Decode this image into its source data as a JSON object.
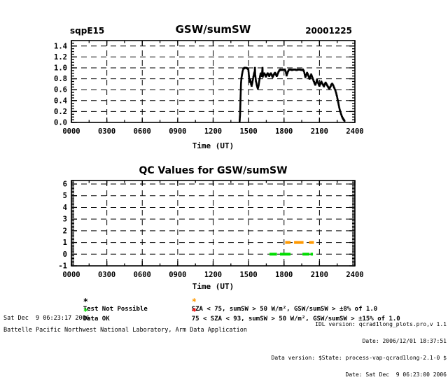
{
  "page": {
    "background": "#ffffff",
    "foreground": "#000000"
  },
  "chart_data": [
    {
      "id": "gsw-sumsw",
      "type": "scatter",
      "site_label": "sqpE15",
      "title": "GSW/sumSW",
      "date_label": "20001225",
      "xlabel": "Time (UT)",
      "xlim": [
        0,
        2400
      ],
      "ylim": [
        0,
        1.5
      ],
      "xticks": [
        "0000",
        "0300",
        "0600",
        "0900",
        "1200",
        "1500",
        "1800",
        "2100",
        "2400"
      ],
      "xtick_values": [
        0,
        300,
        600,
        900,
        1200,
        1500,
        1800,
        2100,
        2400
      ],
      "x_minor_step": 150,
      "yticks": [
        "0.0",
        "0.2",
        "0.4",
        "0.6",
        "0.8",
        "1.0",
        "1.2",
        "1.4"
      ],
      "ytick_values": [
        0,
        0.2,
        0.4,
        0.6,
        0.8,
        1.0,
        1.2,
        1.4
      ],
      "y_minor_step": 0.05,
      "grid": "dashed",
      "marker": "square",
      "marker_color": "#000000",
      "points": [
        [
          1424,
          0.02
        ],
        [
          1428,
          0.15
        ],
        [
          1432,
          0.45
        ],
        [
          1436,
          0.72
        ],
        [
          1440,
          0.82
        ],
        [
          1448,
          0.92
        ],
        [
          1455,
          0.98
        ],
        [
          1465,
          1.0
        ],
        [
          1478,
          1.0
        ],
        [
          1490,
          0.99
        ],
        [
          1498,
          0.97
        ],
        [
          1503,
          0.85
        ],
        [
          1508,
          0.74
        ],
        [
          1514,
          0.79
        ],
        [
          1520,
          0.71
        ],
        [
          1526,
          0.67
        ],
        [
          1533,
          0.74
        ],
        [
          1540,
          0.83
        ],
        [
          1547,
          0.9
        ],
        [
          1552,
          0.93
        ],
        [
          1554,
          1.0
        ],
        [
          1556,
          0.88
        ],
        [
          1562,
          0.76
        ],
        [
          1570,
          0.68
        ],
        [
          1578,
          0.62
        ],
        [
          1585,
          0.68
        ],
        [
          1592,
          0.78
        ],
        [
          1600,
          0.88
        ],
        [
          1606,
          0.9
        ],
        [
          1612,
          0.85
        ],
        [
          1618,
          1.0
        ],
        [
          1620,
          0.84
        ],
        [
          1626,
          0.88
        ],
        [
          1633,
          0.9
        ],
        [
          1640,
          0.87
        ],
        [
          1647,
          0.84
        ],
        [
          1654,
          0.87
        ],
        [
          1661,
          0.9
        ],
        [
          1668,
          0.88
        ],
        [
          1675,
          0.85
        ],
        [
          1682,
          0.88
        ],
        [
          1689,
          0.9
        ],
        [
          1696,
          0.87
        ],
        [
          1703,
          0.83
        ],
        [
          1710,
          0.86
        ],
        [
          1717,
          0.89
        ],
        [
          1724,
          0.91
        ],
        [
          1731,
          0.88
        ],
        [
          1738,
          0.85
        ],
        [
          1745,
          0.88
        ],
        [
          1752,
          0.92
        ],
        [
          1760,
          0.95
        ],
        [
          1770,
          0.97
        ],
        [
          1782,
          0.96
        ],
        [
          1795,
          0.97
        ],
        [
          1808,
          0.97
        ],
        [
          1816,
          0.92
        ],
        [
          1822,
          0.86
        ],
        [
          1828,
          0.9
        ],
        [
          1835,
          0.94
        ],
        [
          1843,
          0.97
        ],
        [
          1855,
          0.97
        ],
        [
          1868,
          0.96
        ],
        [
          1880,
          0.97
        ],
        [
          1893,
          0.97
        ],
        [
          1906,
          0.96
        ],
        [
          1920,
          0.97
        ],
        [
          1934,
          0.97
        ],
        [
          1948,
          0.96
        ],
        [
          1960,
          0.97
        ],
        [
          1968,
          0.94
        ],
        [
          1975,
          0.88
        ],
        [
          1981,
          0.83
        ],
        [
          1988,
          0.87
        ],
        [
          1995,
          0.91
        ],
        [
          2002,
          0.88
        ],
        [
          2009,
          0.84
        ],
        [
          2016,
          0.8
        ],
        [
          2023,
          0.84
        ],
        [
          2030,
          0.88
        ],
        [
          2037,
          0.84
        ],
        [
          2044,
          0.8
        ],
        [
          2051,
          0.76
        ],
        [
          2058,
          0.72
        ],
        [
          2065,
          0.69
        ],
        [
          2072,
          0.73
        ],
        [
          2079,
          0.78
        ],
        [
          2086,
          0.74
        ],
        [
          2093,
          0.7
        ],
        [
          2100,
          0.67
        ],
        [
          2108,
          0.71
        ],
        [
          2115,
          0.75
        ],
        [
          2122,
          0.72
        ],
        [
          2130,
          0.69
        ],
        [
          2138,
          0.66
        ],
        [
          2145,
          0.7
        ],
        [
          2152,
          0.73
        ],
        [
          2160,
          0.7
        ],
        [
          2168,
          0.67
        ],
        [
          2176,
          0.64
        ],
        [
          2184,
          0.62
        ],
        [
          2192,
          0.65
        ],
        [
          2200,
          0.69
        ],
        [
          2208,
          0.71
        ],
        [
          2216,
          0.68
        ],
        [
          2224,
          0.64
        ],
        [
          2232,
          0.6
        ],
        [
          2240,
          0.55
        ],
        [
          2248,
          0.48
        ],
        [
          2256,
          0.4
        ],
        [
          2264,
          0.31
        ],
        [
          2272,
          0.23
        ],
        [
          2282,
          0.16
        ],
        [
          2292,
          0.1
        ],
        [
          2302,
          0.06
        ],
        [
          2312,
          0.03
        ]
      ]
    },
    {
      "id": "qc-values",
      "type": "scatter",
      "title": "QC Values for GSW/sumSW",
      "xlabel": "Time (UT)",
      "xlim": [
        0,
        2400
      ],
      "ylim": [
        -1,
        6.3
      ],
      "xticks": [
        "0000",
        "0300",
        "0600",
        "0900",
        "1200",
        "1500",
        "1800",
        "2100",
        "2400"
      ],
      "xtick_values": [
        0,
        300,
        600,
        900,
        1200,
        1500,
        1800,
        2100,
        2400
      ],
      "x_minor_step": 150,
      "yticks": [
        "-1",
        "0",
        "1",
        "2",
        "3",
        "4",
        "5",
        "6"
      ],
      "ytick_values": [
        -1,
        0,
        1,
        2,
        3,
        4,
        5,
        6
      ],
      "y_minor_step": 0.125,
      "grid": "dashed",
      "series": [
        {
          "name": "Data OK",
          "qc_value": 0,
          "color": "#00dd00",
          "segments": [
            [
              1677,
              1740
            ],
            [
              1766,
              1855
            ],
            [
              1956,
              2015
            ],
            [
              2024,
              2045
            ]
          ]
        },
        {
          "name": "SZA < 75, sumSW > 50 W/m2, GSW/sumSW > +-8% of 1.0",
          "qc_value": 1,
          "color": "#ff9900",
          "segments": [
            [
              1810,
              1855
            ],
            [
              1885,
              1965
            ],
            [
              2012,
              2053
            ]
          ]
        }
      ]
    }
  ],
  "legend": {
    "items": [
      {
        "symbol": "*",
        "color": "#000000",
        "label": "Test Not Possible"
      },
      {
        "symbol": "*",
        "color": "#00dd00",
        "label": "Data OK"
      },
      {
        "symbol": "*",
        "color": "#ff9900",
        "label": "SZA < 75, sumSW > 50 W/m², GSW/sumSW > ±8% of 1.0"
      },
      {
        "symbol": "*",
        "color": "#ff0000",
        "label": "75 < SZA < 93, sumSW > 50 W/m², GSW/sumSW > ±15% of 1.0"
      }
    ]
  },
  "footer": {
    "left_line1": "Sat Dec  9 06:23:17 2006",
    "left_line2": "Battelle Pacific Northwest National Laboratory, Arm Data Application",
    "right_line1": "IDL version: qcrad1long_plots.pro,v 1.1",
    "right_line2": "Date: 2006/12/01 18:37:51",
    "right_line3": "Data version: $State: process-vap-qcrad1long-2.1-0 $",
    "right_line4": "Date: Sat Dec  9 06:23:00 2006"
  }
}
